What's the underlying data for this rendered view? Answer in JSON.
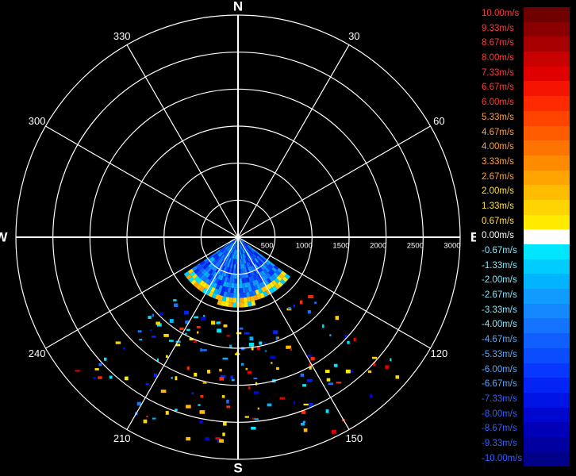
{
  "chart_data": {
    "type": "polar",
    "cardinals": {
      "north": "N",
      "south": "S",
      "east": "E",
      "west": "W"
    },
    "angle_labels": [
      {
        "deg": 30,
        "text": "30"
      },
      {
        "deg": 60,
        "text": "60"
      },
      {
        "deg": 120,
        "text": "120"
      },
      {
        "deg": 150,
        "text": "150"
      },
      {
        "deg": 210,
        "text": "210"
      },
      {
        "deg": 240,
        "text": "240"
      },
      {
        "deg": 300,
        "text": "300"
      },
      {
        "deg": 330,
        "text": "330"
      }
    ],
    "range_labels": [
      "500",
      "1000",
      "1500",
      "2000",
      "2500",
      "3000"
    ],
    "range_max": 3000,
    "ring_step": 500,
    "scan_sector": {
      "from_deg": 125,
      "to_deg": 235,
      "dense_range": 1000
    },
    "colorbar": [
      {
        "label": "10.00m/s",
        "color": "#6e0000"
      },
      {
        "label": "9.33m/s",
        "color": "#8a0000"
      },
      {
        "label": "8.67m/s",
        "color": "#a80000"
      },
      {
        "label": "8.00m/s",
        "color": "#c80000"
      },
      {
        "label": "7.33m/s",
        "color": "#e00000"
      },
      {
        "label": "6.67m/s",
        "color": "#f51400"
      },
      {
        "label": "6.00m/s",
        "color": "#ff2a00"
      },
      {
        "label": "5.33m/s",
        "color": "#ff4400"
      },
      {
        "label": "4.67m/s",
        "color": "#ff5c00"
      },
      {
        "label": "4.00m/s",
        "color": "#ff7400"
      },
      {
        "label": "3.33m/s",
        "color": "#ff8c00"
      },
      {
        "label": "2.67m/s",
        "color": "#ffa400"
      },
      {
        "label": "2.00m/s",
        "color": "#ffbc00"
      },
      {
        "label": "1.33m/s",
        "color": "#ffd400"
      },
      {
        "label": "0.67m/s",
        "color": "#ffea00"
      },
      {
        "label": "0.00m/s",
        "color": "#ffffff"
      },
      {
        "label": "-0.67m/s",
        "color": "#00e6ff"
      },
      {
        "label": "-1.33m/s",
        "color": "#00ccff"
      },
      {
        "label": "-2.00m/s",
        "color": "#00b4ff"
      },
      {
        "label": "-2.67m/s",
        "color": "#109cff"
      },
      {
        "label": "-3.33m/s",
        "color": "#1488ff"
      },
      {
        "label": "-4.00m/s",
        "color": "#1474ff"
      },
      {
        "label": "-4.67m/s",
        "color": "#1060ff"
      },
      {
        "label": "-5.33m/s",
        "color": "#0c4cff"
      },
      {
        "label": "-6.00m/s",
        "color": "#0838ff"
      },
      {
        "label": "-6.67m/s",
        "color": "#0424f5"
      },
      {
        "label": "-7.33m/s",
        "color": "#0014e6"
      },
      {
        "label": "-8.00m/s",
        "color": "#0008d0"
      },
      {
        "label": "-8.67m/s",
        "color": "#0000b8"
      },
      {
        "label": "-9.33m/s",
        "color": "#0000a0"
      },
      {
        "label": "-10.00m/s",
        "color": "#000088"
      }
    ],
    "colors": {
      "background": "#000000",
      "grid": "#ffffff",
      "label": "#ffffff",
      "positive_text": [
        "#ff3b3b",
        "#ffa23b",
        "#ffe23b"
      ],
      "negative_text": [
        "#7fe8ff",
        "#5aa8ff",
        "#3060ff"
      ]
    }
  }
}
